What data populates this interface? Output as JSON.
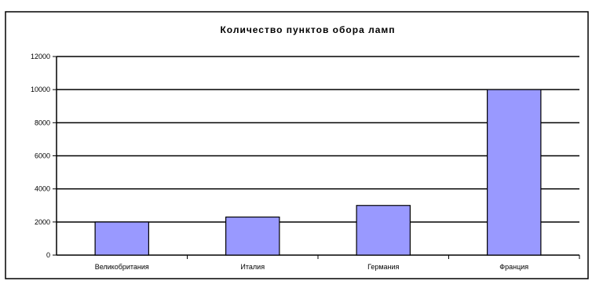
{
  "chart_data": {
    "type": "bar",
    "title": "Количество пунктов обора ламп",
    "categories": [
      "Великобритания",
      "Италия",
      "Германия",
      "Франция"
    ],
    "values": [
      2000,
      2300,
      3000,
      10000
    ],
    "ylim": [
      0,
      12000
    ],
    "yticks": [
      0,
      2000,
      4000,
      6000,
      8000,
      10000,
      12000
    ],
    "xlabel": "",
    "ylabel": "",
    "grid": true,
    "legend": "none",
    "colors": {
      "bar_fill": "#9999ff",
      "bar_stroke": "#000000",
      "gridline": "#000000",
      "frame": "#000000",
      "background": "#ffffff"
    }
  }
}
